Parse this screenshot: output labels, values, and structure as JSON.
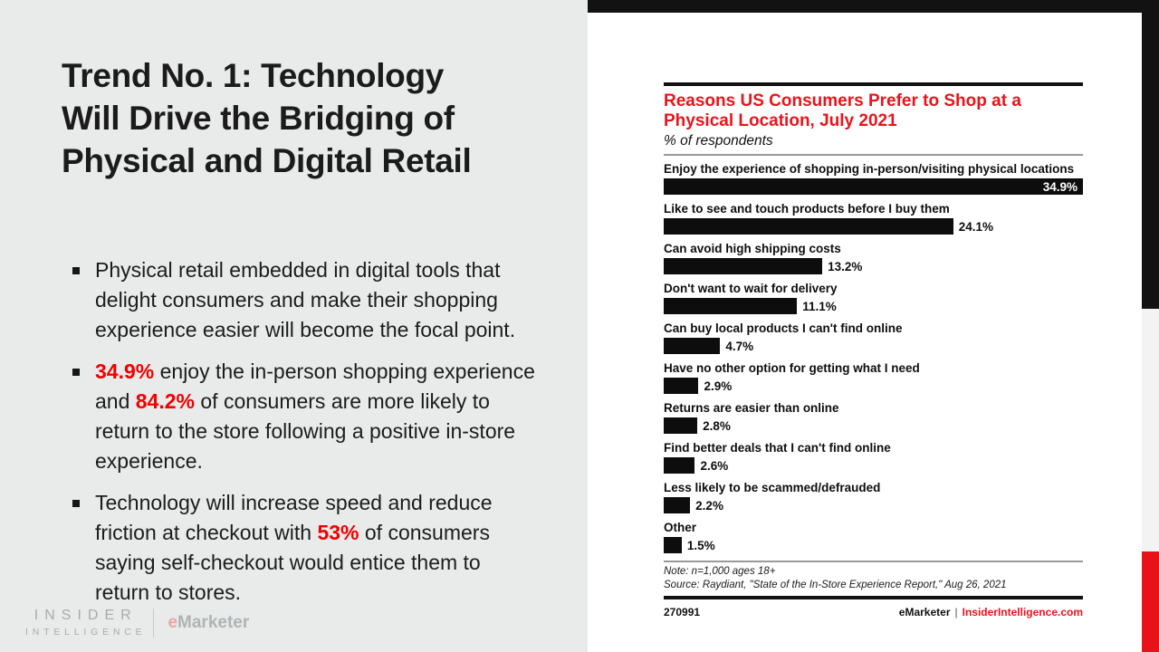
{
  "slide": {
    "title_lines": [
      "Trend No. 1: Technology",
      "Will Drive the Bridging of",
      "Physical and Digital Retail"
    ],
    "accent_color": "#f20000",
    "bullets": [
      {
        "segments": [
          {
            "text": "Physical retail embedded in digital tools that delight consumers and make their shopping experience easier will become the focal point.",
            "red": false
          }
        ]
      },
      {
        "segments": [
          {
            "text": "34.9%",
            "red": true
          },
          {
            "text": " enjoy the in-person shopping experience and ",
            "red": false
          },
          {
            "text": "84.2%",
            "red": true
          },
          {
            "text": " of consumers are more likely to return to the store following a positive in-store experience.",
            "red": false
          }
        ]
      },
      {
        "segments": [
          {
            "text": "Technology will increase speed and reduce friction at checkout with ",
            "red": false
          },
          {
            "text": "53%",
            "red": true
          },
          {
            "text": " of consumers saying self-checkout would entice them to return to stores.",
            "red": false
          }
        ]
      }
    ]
  },
  "logo": {
    "line1": "INSIDER",
    "line2": "INTELLIGENCE",
    "brand_e": "e",
    "brand_rest": "Marketer"
  },
  "chart": {
    "title_line1": "Reasons US Consumers Prefer to Shop at a",
    "title_line2": "Physical Location, July 2021",
    "subtitle": "% of respondents",
    "note": "Note: n=1,000 ages 18+",
    "source": "Source: Raydiant, \"State of the In-Store Experience Report,\" Aug 26, 2021",
    "chart_id": "270991",
    "footer_brand": "eMarketer",
    "footer_separator": "|",
    "footer_site": "InsiderIntelligence.com",
    "title_color": "#e8141c",
    "bar_color": "#0d0d0d"
  },
  "chart_data": {
    "type": "bar",
    "orientation": "horizontal",
    "title": "Reasons US Consumers Prefer to Shop at a Physical Location, July 2021",
    "subtitle": "% of respondents",
    "categories": [
      "Enjoy the experience of shopping in-person/visiting physical locations",
      "Like to see and touch products before I buy them",
      "Can avoid high shipping costs",
      "Don't want to wait for delivery",
      "Can buy local products I can't find online",
      "Have no other option for getting what I need",
      "Returns are easier than online",
      "Find better deals that I can't find online",
      "Less likely to be scammed/defrauded",
      "Other"
    ],
    "values": [
      34.9,
      24.1,
      13.2,
      11.1,
      4.7,
      2.9,
      2.8,
      2.6,
      2.2,
      1.5
    ],
    "value_labels": [
      "34.9%",
      "24.1%",
      "13.2%",
      "11.1%",
      "4.7%",
      "2.9%",
      "2.8%",
      "2.6%",
      "2.2%",
      "1.5%"
    ],
    "xlim": [
      0,
      34.9
    ],
    "grid": false,
    "legend": "none",
    "note": "Note: n=1,000 ages 18+",
    "source": "Source: Raydiant, \"State of the In-Store Experience Report,\" Aug 26, 2021"
  }
}
